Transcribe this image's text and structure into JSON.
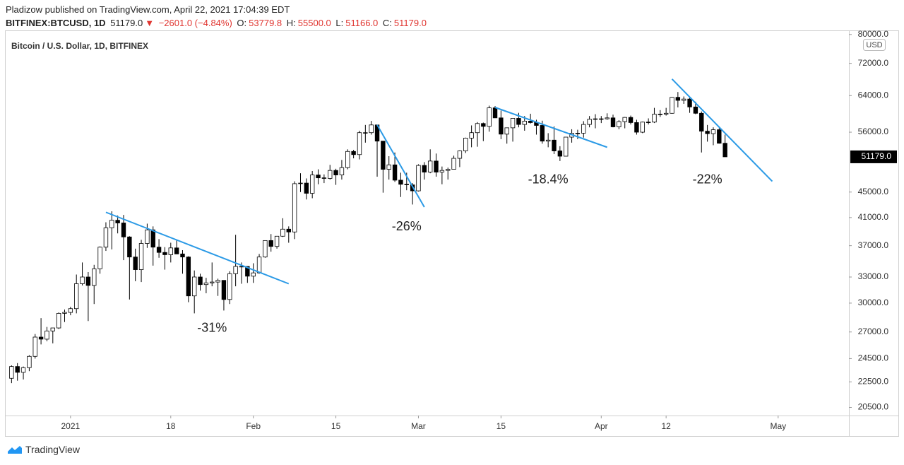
{
  "header": {
    "publisher": "Pladizow published on TradingView.com, April 22, 2021 17:04:39 EDT",
    "symbol": "BITFINEX:BTCUSD, 1D",
    "last": "51179.0",
    "arrow": "▼",
    "change": "−2601.0 (−4.84%)",
    "o_label": "O:",
    "o_value": "53779.8",
    "h_label": "H:",
    "h_value": "55500.0",
    "l_label": "L:",
    "l_value": "51166.0",
    "c_label": "C:",
    "c_value": "51179.0"
  },
  "footer": {
    "brand": "TradingView"
  },
  "chart_data": {
    "type": "candlestick",
    "title": "Bitcoin / U.S. Dollar, 1D, BITFINEX",
    "currency": "USD",
    "log_scale": true,
    "grid": false,
    "up_color": "#ffffff",
    "down_color": "#000000",
    "wick_color": "#000000",
    "trend_color": "#2b9ae6",
    "x": [
      "2020-12-22",
      "2020-12-23",
      "2020-12-24",
      "2020-12-25",
      "2020-12-26",
      "2020-12-27",
      "2020-12-28",
      "2020-12-29",
      "2020-12-30",
      "2020-12-31",
      "2021-01-01",
      "2021-01-02",
      "2021-01-03",
      "2021-01-04",
      "2021-01-05",
      "2021-01-06",
      "2021-01-07",
      "2021-01-08",
      "2021-01-09",
      "2021-01-10",
      "2021-01-11",
      "2021-01-12",
      "2021-01-13",
      "2021-01-14",
      "2021-01-15",
      "2021-01-16",
      "2021-01-17",
      "2021-01-18",
      "2021-01-19",
      "2021-01-20",
      "2021-01-21",
      "2021-01-22",
      "2021-01-23",
      "2021-01-24",
      "2021-01-25",
      "2021-01-26",
      "2021-01-27",
      "2021-01-28",
      "2021-01-29",
      "2021-01-30",
      "2021-01-31",
      "2021-02-01",
      "2021-02-02",
      "2021-02-03",
      "2021-02-04",
      "2021-02-05",
      "2021-02-06",
      "2021-02-07",
      "2021-02-08",
      "2021-02-09",
      "2021-02-10",
      "2021-02-11",
      "2021-02-12",
      "2021-02-13",
      "2021-02-14",
      "2021-02-15",
      "2021-02-16",
      "2021-02-17",
      "2021-02-18",
      "2021-02-19",
      "2021-02-20",
      "2021-02-21",
      "2021-02-22",
      "2021-02-23",
      "2021-02-24",
      "2021-02-25",
      "2021-02-26",
      "2021-02-27",
      "2021-02-28",
      "2021-03-01",
      "2021-03-02",
      "2021-03-03",
      "2021-03-04",
      "2021-03-05",
      "2021-03-06",
      "2021-03-07",
      "2021-03-08",
      "2021-03-09",
      "2021-03-10",
      "2021-03-11",
      "2021-03-12",
      "2021-03-13",
      "2021-03-14",
      "2021-03-15",
      "2021-03-16",
      "2021-03-17",
      "2021-03-18",
      "2021-03-19",
      "2021-03-20",
      "2021-03-21",
      "2021-03-22",
      "2021-03-23",
      "2021-03-24",
      "2021-03-25",
      "2021-03-26",
      "2021-03-27",
      "2021-03-28",
      "2021-03-29",
      "2021-03-30",
      "2021-03-31",
      "2021-04-01",
      "2021-04-02",
      "2021-04-03",
      "2021-04-04",
      "2021-04-05",
      "2021-04-06",
      "2021-04-07",
      "2021-04-08",
      "2021-04-09",
      "2021-04-10",
      "2021-04-11",
      "2021-04-12",
      "2021-04-13",
      "2021-04-14",
      "2021-04-15",
      "2021-04-16",
      "2021-04-17",
      "2021-04-18",
      "2021-04-19",
      "2021-04-20",
      "2021-04-21",
      "2021-04-22"
    ],
    "open": [
      22800,
      23800,
      23300,
      23700,
      24700,
      26500,
      26300,
      27100,
      27400,
      28900,
      29000,
      29400,
      32200,
      33000,
      32000,
      34000,
      36800,
      39500,
      40600,
      40200,
      38200,
      35500,
      33900,
      37300,
      39200,
      36800,
      36100,
      35800,
      36700,
      35900,
      35500,
      30800,
      33000,
      32100,
      32300,
      32400,
      32600,
      30400,
      33400,
      34300,
      34300,
      33100,
      33500,
      35500,
      37700,
      36900,
      38300,
      39300,
      38900,
      46400,
      46500,
      44800,
      47900,
      47400,
      47300,
      48700,
      47900,
      49200,
      52200,
      51600,
      55900,
      55900,
      57500,
      54200,
      48900,
      49700,
      47000,
      46300,
      46200,
      45200,
      49600,
      48400,
      50400,
      48400,
      48700,
      48900,
      50900,
      52300,
      54800,
      55900,
      57800,
      57200,
      61200,
      59000,
      55600,
      56900,
      58900,
      57600,
      58300,
      58000,
      57400,
      54200,
      54400,
      52300,
      51300,
      55000,
      55800,
      55800,
      57600,
      58700,
      58800,
      58800,
      59000,
      57100,
      58200,
      59100,
      58000,
      56000,
      58100,
      58100,
      59800,
      59800,
      60000,
      63600,
      62900,
      63200,
      61400,
      60000,
      56200,
      55700,
      56500,
      53779.8
    ],
    "high": [
      23900,
      24100,
      23800,
      24800,
      26800,
      28400,
      27500,
      27400,
      28999,
      29300,
      29600,
      33300,
      34800,
      33600,
      34500,
      36900,
      40300,
      41950,
      41300,
      41400,
      38300,
      36600,
      37800,
      40100,
      39700,
      37900,
      36800,
      37400,
      37800,
      36400,
      35600,
      33800,
      33400,
      32900,
      34800,
      32800,
      32600,
      33700,
      38500,
      34800,
      34300,
      34700,
      35900,
      37700,
      38600,
      38300,
      40900,
      39700,
      46800,
      48200,
      47300,
      48600,
      48900,
      48000,
      49700,
      49000,
      50600,
      52600,
      52500,
      56300,
      57500,
      58350,
      57500,
      54200,
      51300,
      52000,
      48300,
      48300,
      46500,
      49800,
      50200,
      52600,
      51800,
      49400,
      49200,
      51400,
      52400,
      54900,
      57400,
      58100,
      58000,
      61700,
      61600,
      60600,
      56900,
      58900,
      60100,
      59400,
      59900,
      58600,
      58400,
      55800,
      57200,
      53200,
      55000,
      56600,
      56500,
      58300,
      59400,
      59800,
      59400,
      60000,
      59700,
      58500,
      59200,
      59500,
      58600,
      58200,
      58900,
      61200,
      60700,
      61200,
      63700,
      64850,
      63800,
      63500,
      62600,
      60400,
      57500,
      57000,
      56800,
      55500
    ],
    "low": [
      22400,
      22600,
      22700,
      23400,
      24500,
      25800,
      26100,
      25900,
      27300,
      28000,
      28700,
      28900,
      32000,
      28100,
      29900,
      33400,
      36300,
      36500,
      38700,
      35100,
      30400,
      32500,
      32400,
      36700,
      34400,
      35400,
      33900,
      34800,
      35900,
      33400,
      30100,
      28900,
      31400,
      31100,
      31900,
      30800,
      29200,
      29900,
      31900,
      32200,
      32300,
      32300,
      33400,
      35400,
      36200,
      36600,
      38200,
      37400,
      37900,
      45000,
      43800,
      44000,
      46300,
      46500,
      47100,
      46200,
      47100,
      48900,
      50900,
      50700,
      53900,
      55500,
      47600,
      44900,
      47100,
      46700,
      44200,
      45300,
      43000,
      45100,
      47100,
      48200,
      47600,
      46300,
      47100,
      48900,
      49300,
      51900,
      53000,
      53100,
      54200,
      56100,
      59000,
      54600,
      53700,
      54100,
      57000,
      56300,
      57800,
      55500,
      53700,
      53000,
      51700,
      50400,
      51300,
      53900,
      54600,
      54900,
      57000,
      56800,
      57900,
      58600,
      57000,
      56600,
      56800,
      57600,
      55500,
      55800,
      57600,
      57900,
      59200,
      59500,
      59900,
      61300,
      62100,
      60100,
      59800,
      52000,
      54100,
      53400,
      53700,
      51166
    ],
    "close": [
      23800,
      23300,
      23700,
      24700,
      26500,
      26300,
      27100,
      27400,
      28900,
      29000,
      29400,
      32200,
      33000,
      32000,
      34000,
      36800,
      39500,
      40600,
      40200,
      38200,
      35500,
      33900,
      37300,
      39200,
      36800,
      36100,
      35800,
      36700,
      35900,
      35500,
      30800,
      33000,
      32100,
      32300,
      32400,
      32600,
      30400,
      33400,
      34300,
      34300,
      33100,
      33500,
      35500,
      37700,
      36900,
      38300,
      39300,
      38900,
      46400,
      46500,
      44800,
      47900,
      47400,
      47300,
      48700,
      47900,
      49200,
      52200,
      51600,
      55900,
      55900,
      57500,
      54200,
      48900,
      49700,
      47000,
      46300,
      46200,
      45200,
      49600,
      48400,
      50400,
      48400,
      48700,
      48900,
      50900,
      52300,
      54800,
      55900,
      57800,
      57200,
      61200,
      59000,
      55600,
      56900,
      58900,
      57600,
      58300,
      58000,
      57400,
      54200,
      54400,
      52300,
      51300,
      55000,
      55800,
      55800,
      57600,
      58700,
      58800,
      58800,
      59000,
      57100,
      58200,
      59100,
      58000,
      56000,
      58100,
      58100,
      59800,
      59800,
      60000,
      63600,
      62900,
      63200,
      61400,
      60000,
      56200,
      55700,
      56500,
      53779.8,
      51179
    ],
    "xlim": [
      "2020-12-21",
      "2021-05-13"
    ],
    "xticks": [
      {
        "value": "2021-01-01",
        "label": "2021"
      },
      {
        "value": "2021-01-18",
        "label": "18"
      },
      {
        "value": "2021-02-01",
        "label": "Feb"
      },
      {
        "value": "2021-02-15",
        "label": "15"
      },
      {
        "value": "2021-03-01",
        "label": "Mar"
      },
      {
        "value": "2021-03-15",
        "label": "15"
      },
      {
        "value": "2021-04-01",
        "label": "Apr"
      },
      {
        "value": "2021-04-12",
        "label": "12"
      },
      {
        "value": "2021-05-01",
        "label": "May"
      }
    ],
    "ylim": [
      19900,
      81000
    ],
    "yticks": [
      {
        "value": 80000,
        "label": "80000.0"
      },
      {
        "value": 72000,
        "label": "72000.0"
      },
      {
        "value": 64000,
        "label": "64000.0"
      },
      {
        "value": 56000,
        "label": "56000.0"
      },
      {
        "value": 45000,
        "label": "45000.0"
      },
      {
        "value": 41000,
        "label": "41000.0"
      },
      {
        "value": 37000,
        "label": "37000.0"
      },
      {
        "value": 33000,
        "label": "33000.0"
      },
      {
        "value": 30000,
        "label": "30000.0"
      },
      {
        "value": 27000,
        "label": "27000.0"
      },
      {
        "value": 24500,
        "label": "24500.0"
      },
      {
        "value": 22500,
        "label": "22500.0"
      },
      {
        "value": 20500,
        "label": "20500.0"
      }
    ],
    "last_price": {
      "value": 51179,
      "label": "51179.0"
    },
    "trend_lines": [
      {
        "start": [
          "2021-01-07",
          41800
        ],
        "end": [
          "2021-02-07",
          32200
        ]
      },
      {
        "start": [
          "2021-02-22",
          57500
        ],
        "end": [
          "2021-03-02",
          42600
        ]
      },
      {
        "start": [
          "2021-03-14",
          61300
        ],
        "end": [
          "2021-04-02",
          53000
        ]
      },
      {
        "start": [
          "2021-04-13",
          68000
        ],
        "end": [
          "2021-04-30",
          46800
        ]
      }
    ],
    "annotations": [
      {
        "text": "-31%",
        "x": "2021-01-25",
        "y": 27350
      },
      {
        "text": "-26%",
        "x": "2021-02-27",
        "y": 39600
      },
      {
        "text": "-18.4%",
        "x": "2021-03-23",
        "y": 47000
      },
      {
        "text": "-22%",
        "x": "2021-04-19",
        "y": 47000
      }
    ]
  }
}
